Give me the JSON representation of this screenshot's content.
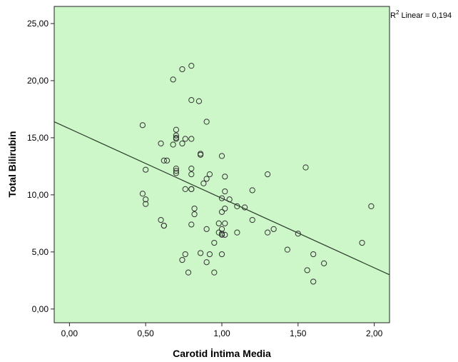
{
  "chart_data": {
    "type": "scatter",
    "title": "",
    "xlabel": "Carotid İntima Media",
    "ylabel": "Total Bilirubin",
    "xlim": [
      -0.1,
      2.1
    ],
    "ylim": [
      -1.2,
      26.5
    ],
    "x_ticks": [
      {
        "value": 0.0,
        "label": "0,00"
      },
      {
        "value": 0.5,
        "label": "0,50"
      },
      {
        "value": 1.0,
        "label": "1,00"
      },
      {
        "value": 1.5,
        "label": "1,50"
      },
      {
        "value": 2.0,
        "label": "2,00"
      }
    ],
    "y_ticks": [
      {
        "value": 0.0,
        "label": "0,00"
      },
      {
        "value": 5.0,
        "label": "5,00"
      },
      {
        "value": 10.0,
        "label": "10,00"
      },
      {
        "value": 15.0,
        "label": "15,00"
      },
      {
        "value": 20.0,
        "label": "20,00"
      },
      {
        "value": 25.0,
        "label": "25,00"
      }
    ],
    "grid": false,
    "background_color": "#cdf7c8",
    "marker_color": "#333333",
    "line_color": "#2b3d2b",
    "points": [
      {
        "x": 0.48,
        "y": 16.1
      },
      {
        "x": 0.48,
        "y": 10.1
      },
      {
        "x": 0.5,
        "y": 12.2
      },
      {
        "x": 0.5,
        "y": 9.6
      },
      {
        "x": 0.5,
        "y": 9.2
      },
      {
        "x": 0.6,
        "y": 14.5
      },
      {
        "x": 0.6,
        "y": 7.8
      },
      {
        "x": 0.62,
        "y": 7.3
      },
      {
        "x": 0.62,
        "y": 7.3
      },
      {
        "x": 0.62,
        "y": 13.0
      },
      {
        "x": 0.64,
        "y": 13.0
      },
      {
        "x": 0.68,
        "y": 20.1
      },
      {
        "x": 0.68,
        "y": 14.4
      },
      {
        "x": 0.7,
        "y": 15.7
      },
      {
        "x": 0.7,
        "y": 15.2
      },
      {
        "x": 0.7,
        "y": 15.0
      },
      {
        "x": 0.7,
        "y": 14.9
      },
      {
        "x": 0.7,
        "y": 12.3
      },
      {
        "x": 0.7,
        "y": 12.1
      },
      {
        "x": 0.7,
        "y": 11.9
      },
      {
        "x": 0.74,
        "y": 14.5
      },
      {
        "x": 0.74,
        "y": 21.0
      },
      {
        "x": 0.74,
        "y": 4.3
      },
      {
        "x": 0.76,
        "y": 14.9
      },
      {
        "x": 0.76,
        "y": 10.5
      },
      {
        "x": 0.76,
        "y": 4.8
      },
      {
        "x": 0.78,
        "y": 3.2
      },
      {
        "x": 0.8,
        "y": 21.3
      },
      {
        "x": 0.8,
        "y": 18.3
      },
      {
        "x": 0.8,
        "y": 14.9
      },
      {
        "x": 0.8,
        "y": 12.3
      },
      {
        "x": 0.8,
        "y": 11.8
      },
      {
        "x": 0.8,
        "y": 10.5
      },
      {
        "x": 0.8,
        "y": 10.5
      },
      {
        "x": 0.8,
        "y": 7.4
      },
      {
        "x": 0.82,
        "y": 8.3
      },
      {
        "x": 0.82,
        "y": 8.8
      },
      {
        "x": 0.85,
        "y": 18.2
      },
      {
        "x": 0.86,
        "y": 13.6
      },
      {
        "x": 0.86,
        "y": 13.5
      },
      {
        "x": 0.86,
        "y": 4.9
      },
      {
        "x": 0.88,
        "y": 11.0
      },
      {
        "x": 0.9,
        "y": 16.4
      },
      {
        "x": 0.9,
        "y": 11.4
      },
      {
        "x": 0.9,
        "y": 7.0
      },
      {
        "x": 0.9,
        "y": 4.1
      },
      {
        "x": 0.92,
        "y": 11.8
      },
      {
        "x": 0.92,
        "y": 4.8
      },
      {
        "x": 0.95,
        "y": 5.8
      },
      {
        "x": 0.95,
        "y": 3.2
      },
      {
        "x": 0.98,
        "y": 7.5
      },
      {
        "x": 0.98,
        "y": 6.7
      },
      {
        "x": 1.0,
        "y": 13.4
      },
      {
        "x": 1.0,
        "y": 9.7
      },
      {
        "x": 1.0,
        "y": 8.5
      },
      {
        "x": 1.0,
        "y": 7.0
      },
      {
        "x": 1.0,
        "y": 6.6
      },
      {
        "x": 1.0,
        "y": 6.5
      },
      {
        "x": 1.0,
        "y": 4.8
      },
      {
        "x": 1.02,
        "y": 11.6
      },
      {
        "x": 1.02,
        "y": 10.3
      },
      {
        "x": 1.02,
        "y": 8.8
      },
      {
        "x": 1.02,
        "y": 7.5
      },
      {
        "x": 1.02,
        "y": 6.5
      },
      {
        "x": 1.05,
        "y": 9.6
      },
      {
        "x": 1.1,
        "y": 9.0
      },
      {
        "x": 1.1,
        "y": 6.7
      },
      {
        "x": 1.15,
        "y": 8.9
      },
      {
        "x": 1.2,
        "y": 10.4
      },
      {
        "x": 1.2,
        "y": 7.8
      },
      {
        "x": 1.3,
        "y": 11.8
      },
      {
        "x": 1.3,
        "y": 6.7
      },
      {
        "x": 1.34,
        "y": 7.0
      },
      {
        "x": 1.43,
        "y": 5.2
      },
      {
        "x": 1.5,
        "y": 6.6
      },
      {
        "x": 1.55,
        "y": 12.4
      },
      {
        "x": 1.56,
        "y": 3.4
      },
      {
        "x": 1.6,
        "y": 4.8
      },
      {
        "x": 1.6,
        "y": 2.4
      },
      {
        "x": 1.67,
        "y": 4.0
      },
      {
        "x": 1.92,
        "y": 5.8
      },
      {
        "x": 1.98,
        "y": 9.0
      }
    ],
    "fit_line": {
      "type": "linear",
      "x": [
        -0.1,
        2.1
      ],
      "y": [
        16.4,
        3.0
      ]
    },
    "r2_label": {
      "prefix": "R",
      "sup": "2",
      "text": " Linear = 0,194"
    }
  }
}
